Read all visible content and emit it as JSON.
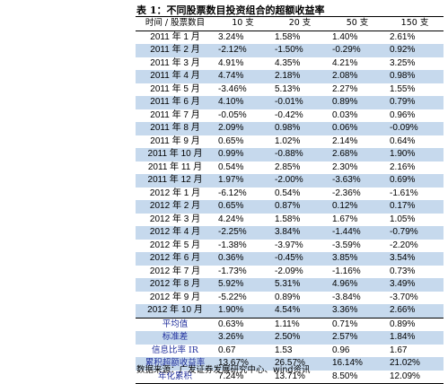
{
  "caption": "表 1：不同股票数目投资组合的超额收益率",
  "headers": [
    "时间 / 股票数目",
    "10 支",
    "20 支",
    "50 支",
    "150 支"
  ],
  "rows": [
    {
      "label": "2011 年 1 月",
      "values": [
        "3.24%",
        "1.58%",
        "1.40%",
        "2.61%"
      ]
    },
    {
      "label": "2011 年 2 月",
      "values": [
        "-2.12%",
        "-1.50%",
        "-0.29%",
        "0.92%"
      ]
    },
    {
      "label": "2011 年 3 月",
      "values": [
        "4.91%",
        "4.35%",
        "4.21%",
        "3.25%"
      ]
    },
    {
      "label": "2011 年 4 月",
      "values": [
        "4.74%",
        "2.18%",
        "2.08%",
        "0.98%"
      ]
    },
    {
      "label": "2011 年 5 月",
      "values": [
        "-3.46%",
        "5.13%",
        "2.27%",
        "1.55%"
      ]
    },
    {
      "label": "2011 年 6 月",
      "values": [
        "4.10%",
        "-0.01%",
        "0.89%",
        "0.79%"
      ]
    },
    {
      "label": "2011 年 7 月",
      "values": [
        "-0.05%",
        "-0.42%",
        "0.03%",
        "0.96%"
      ]
    },
    {
      "label": "2011 年 8 月",
      "values": [
        "2.09%",
        "0.98%",
        "0.06%",
        "-0.09%"
      ]
    },
    {
      "label": "2011 年 9 月",
      "values": [
        "0.65%",
        "1.02%",
        "2.14%",
        "0.64%"
      ]
    },
    {
      "label": "2011 年 10 月",
      "values": [
        "0.99%",
        "-0.88%",
        "2.68%",
        "1.90%"
      ]
    },
    {
      "label": "2011 年 11 月",
      "values": [
        "0.54%",
        "2.85%",
        "2.30%",
        "2.16%"
      ]
    },
    {
      "label": "2011 年 12 月",
      "values": [
        "1.97%",
        "-2.00%",
        "-3.63%",
        "0.69%"
      ]
    },
    {
      "label": "2012 年 1 月",
      "values": [
        "-6.12%",
        "0.54%",
        "-2.36%",
        "-1.61%"
      ]
    },
    {
      "label": "2012 年 2 月",
      "values": [
        "0.65%",
        "0.87%",
        "0.12%",
        "0.17%"
      ]
    },
    {
      "label": "2012 年 3 月",
      "values": [
        "4.24%",
        "1.58%",
        "1.67%",
        "1.05%"
      ]
    },
    {
      "label": "2012 年 4 月",
      "values": [
        "-2.25%",
        "3.84%",
        "-1.44%",
        "-0.79%"
      ]
    },
    {
      "label": "2012 年 5 月",
      "values": [
        "-1.38%",
        "-3.97%",
        "-3.59%",
        "-2.20%"
      ]
    },
    {
      "label": "2012 年 6 月",
      "values": [
        "0.36%",
        "-0.45%",
        "3.85%",
        "3.54%"
      ]
    },
    {
      "label": "2012 年 7 月",
      "values": [
        "-1.73%",
        "-2.09%",
        "-1.16%",
        "0.73%"
      ]
    },
    {
      "label": "2012 年 8 月",
      "values": [
        "5.92%",
        "5.31%",
        "4.96%",
        "3.49%"
      ]
    },
    {
      "label": "2012 年 9 月",
      "values": [
        "-5.22%",
        "0.89%",
        "-3.84%",
        "-3.70%"
      ]
    },
    {
      "label": "2012 年 10 月",
      "values": [
        "1.90%",
        "4.54%",
        "3.36%",
        "2.66%"
      ]
    }
  ],
  "summary": [
    {
      "label": "平均值",
      "values": [
        "0.63%",
        "1.11%",
        "0.71%",
        "0.89%"
      ]
    },
    {
      "label": "标准差",
      "values": [
        "3.26%",
        "2.50%",
        "2.57%",
        "1.84%"
      ]
    },
    {
      "label": "信息比率 IR",
      "values": [
        "0.67",
        "1.53",
        "0.96",
        "1.67"
      ]
    },
    {
      "label": "累积超额收益率",
      "values": [
        "13.67%",
        "26.57%",
        "16.14%",
        "21.02%"
      ]
    },
    {
      "label": "年化累积",
      "values": [
        "7.24%",
        "13.71%",
        "8.50%",
        "12.09%"
      ]
    }
  ],
  "source": "数据来源：广发证券发展研究中心、wind资讯",
  "colors": {
    "shade": "#c6d9ed",
    "summary_label": "#1f2e9c"
  }
}
